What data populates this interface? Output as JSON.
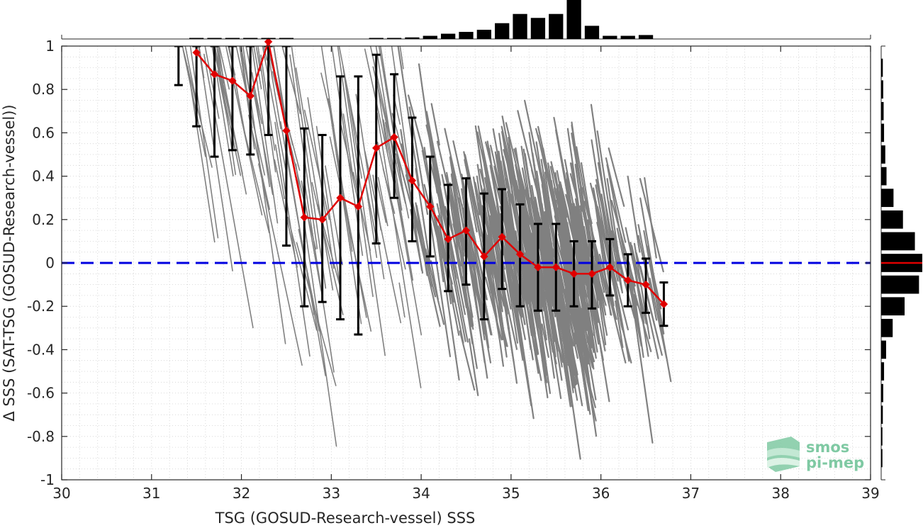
{
  "chart_data": {
    "type": "scatter",
    "xlabel": "TSG (GOSUD-Research-vessel) SSS",
    "ylabel": "Δ SSS (SAT-TSG (GOSUD-Research-vessel))",
    "xlim": [
      30,
      39
    ],
    "ylim": [
      -1,
      1
    ],
    "xticks": [
      "30",
      "31",
      "32",
      "33",
      "34",
      "35",
      "36",
      "37",
      "38",
      "39"
    ],
    "yticks": [
      "-1",
      "-0.8",
      "-0.6",
      "-0.4",
      "-0.2",
      "0",
      "0.2",
      "0.4",
      "0.6",
      "0.8",
      "1"
    ],
    "grid": "minor dotted",
    "zero_line": 0,
    "colors": {
      "scatter": "#808080",
      "mean": "#e00000",
      "errorbar": "#000000",
      "zero": "#0000e0",
      "hist": "#000000"
    },
    "binned_mean": {
      "x": [
        31.5,
        31.7,
        31.9,
        32.1,
        32.3,
        32.5,
        32.7,
        32.9,
        33.1,
        33.3,
        33.5,
        33.7,
        33.9,
        34.1,
        34.3,
        34.5,
        34.7,
        34.9,
        35.1,
        35.3,
        35.5,
        35.7,
        35.9,
        36.1,
        36.3,
        36.5,
        36.7
      ],
      "mean": [
        0.97,
        0.87,
        0.84,
        0.77,
        1.02,
        0.61,
        0.21,
        0.2,
        0.3,
        0.26,
        0.53,
        0.58,
        0.38,
        0.26,
        0.11,
        0.15,
        0.03,
        0.12,
        0.04,
        -0.02,
        -0.02,
        -0.05,
        -0.05,
        -0.02,
        -0.08,
        -0.1,
        -0.19
      ],
      "lower": [
        0.63,
        0.49,
        0.52,
        0.5,
        0.59,
        0.08,
        -0.2,
        -0.18,
        -0.26,
        -0.33,
        0.09,
        0.3,
        0.1,
        0.03,
        -0.13,
        -0.1,
        -0.26,
        -0.12,
        -0.2,
        -0.22,
        -0.22,
        -0.2,
        -0.21,
        -0.15,
        -0.2,
        -0.23,
        -0.29
      ],
      "upper": [
        1.0,
        1.0,
        1.0,
        1.0,
        1.0,
        1.0,
        0.62,
        0.59,
        0.86,
        0.86,
        0.96,
        0.87,
        0.67,
        0.49,
        0.36,
        0.39,
        0.32,
        0.34,
        0.27,
        0.18,
        0.18,
        0.1,
        0.1,
        0.11,
        0.04,
        0.02,
        -0.09
      ],
      "lone_errorbar": {
        "x": 31.3,
        "lower": 0.82,
        "upper": 1.0
      }
    },
    "top_histogram": {
      "bin_width": 0.2,
      "x": [
        31.5,
        31.7,
        31.9,
        32.1,
        32.3,
        32.5,
        32.7,
        32.9,
        33.1,
        33.3,
        33.5,
        33.7,
        33.9,
        34.1,
        34.3,
        34.5,
        34.7,
        34.9,
        35.1,
        35.3,
        35.5,
        35.7,
        35.9,
        36.1,
        36.3,
        36.5
      ],
      "counts": [
        0.02,
        0.02,
        0.02,
        0.04,
        0.02,
        0.02,
        0,
        0,
        0,
        0,
        0.02,
        0.04,
        0.06,
        0.12,
        0.2,
        0.27,
        0.35,
        0.6,
        0.95,
        0.8,
        0.95,
        1.48,
        0.5,
        0.12,
        0.12,
        0.15
      ]
    },
    "right_histogram": {
      "bin_width": 0.1,
      "y": [
        0.9,
        0.8,
        0.7,
        0.6,
        0.5,
        0.4,
        0.3,
        0.2,
        0.1,
        0.0,
        -0.1,
        -0.2,
        -0.3,
        -0.4,
        -0.5,
        -0.6,
        -0.7,
        -0.8,
        -0.9
      ],
      "counts": [
        0.04,
        0.05,
        0.06,
        0.07,
        0.1,
        0.13,
        0.3,
        0.53,
        0.82,
        1.0,
        0.92,
        0.57,
        0.28,
        0.12,
        0.07,
        0.05,
        0.04,
        0.03,
        0.03
      ],
      "median_marker": 0.0
    }
  },
  "logo": {
    "line1": "smos",
    "line2": "pi-mep"
  }
}
